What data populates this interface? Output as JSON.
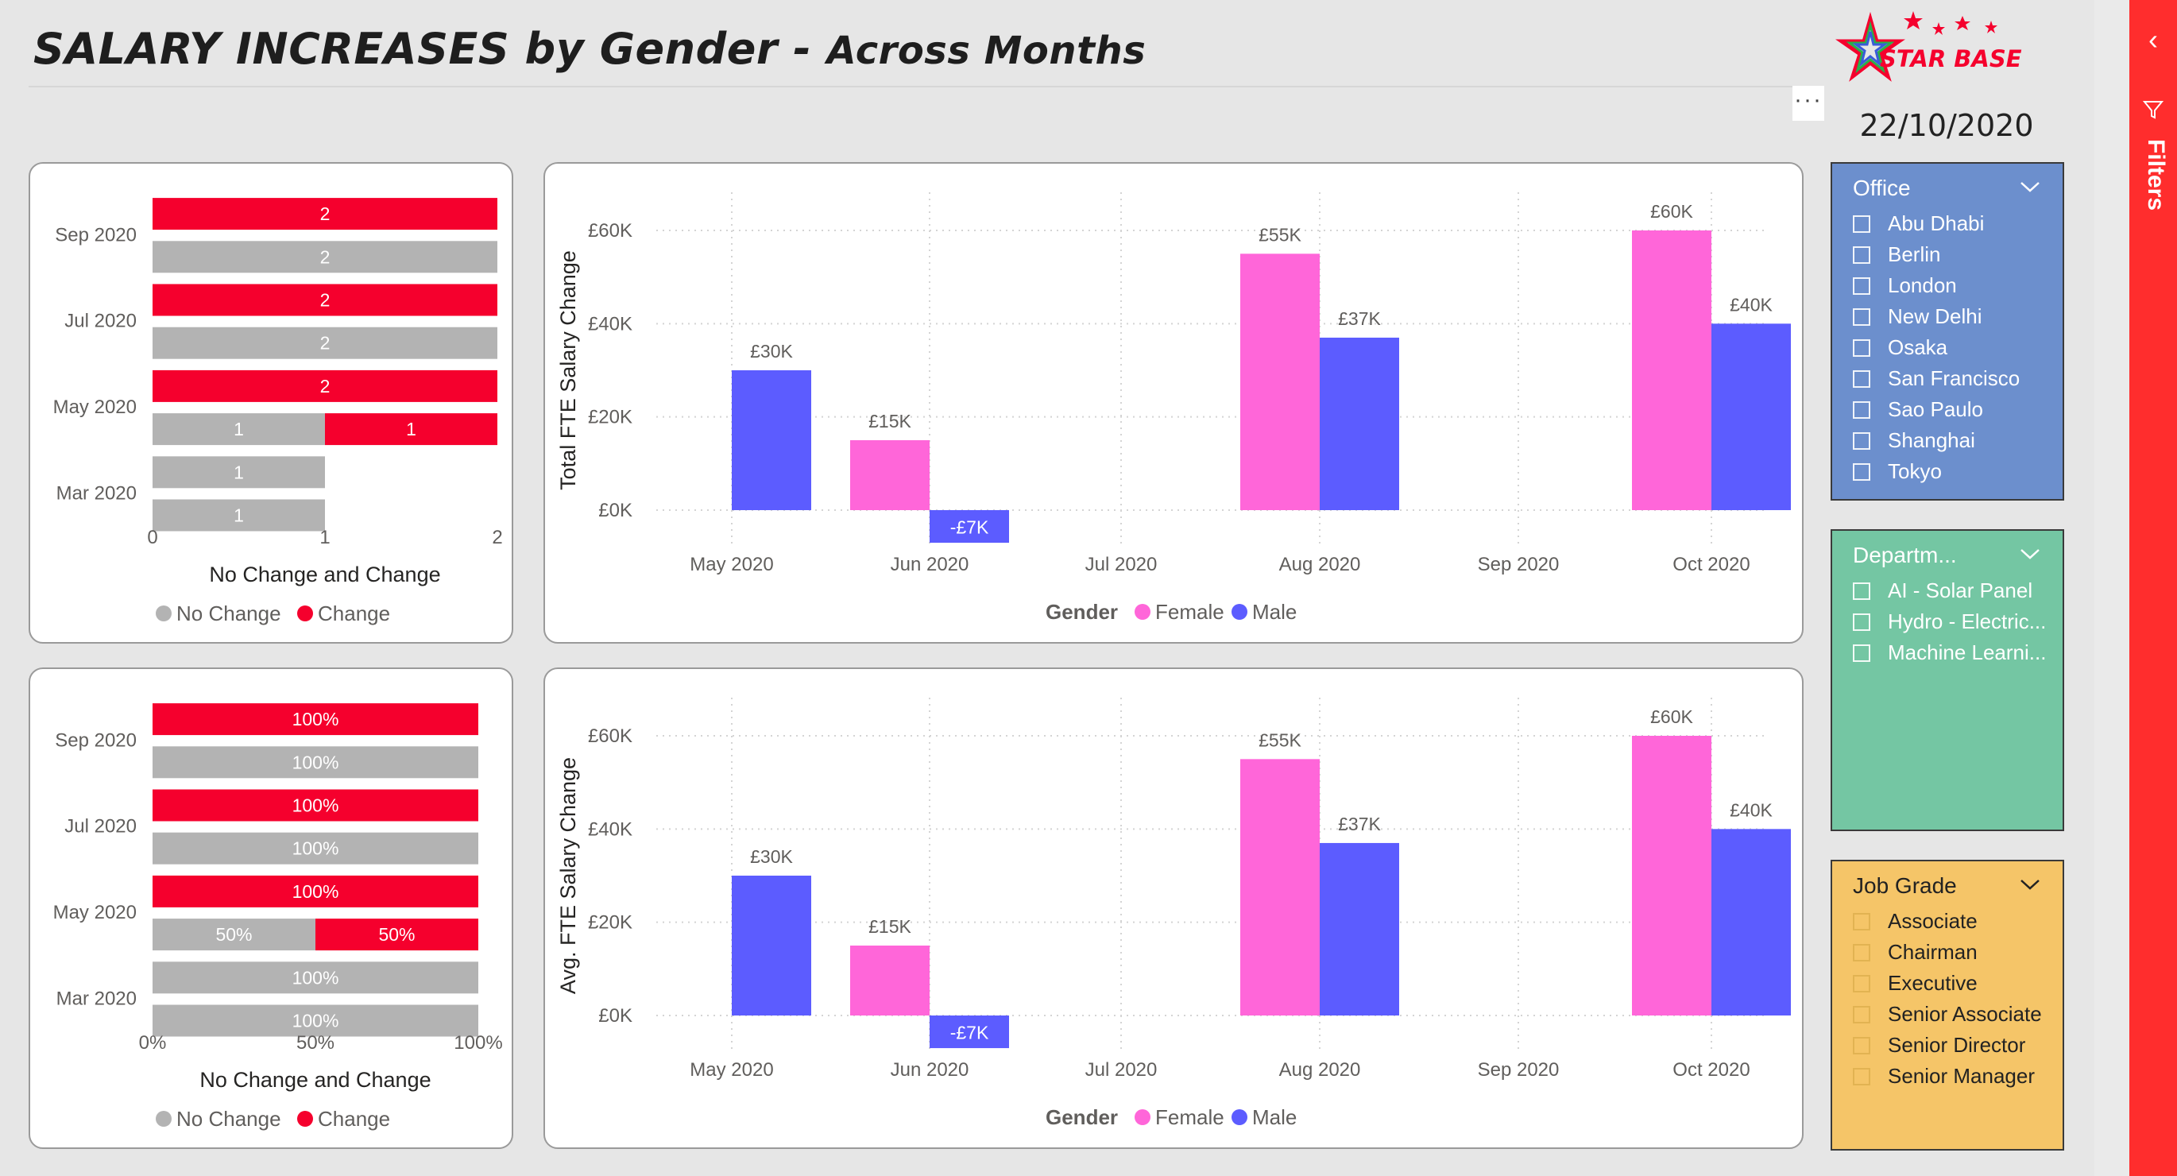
{
  "title": {
    "main": "SALARY INCREASES by Gender - ",
    "sub": "Across Months"
  },
  "logo": {
    "text": "STAR BASE"
  },
  "date": "22/10/2020",
  "more_label": "···",
  "filters_label": "Filters",
  "colors": {
    "female": "#ff66d9",
    "male": "#5c5cff",
    "no_change": "#b3b3b3",
    "change": "#f5002d",
    "office_bg": "#6c8fcd",
    "dept_bg": "#74c6a3",
    "grade_bg": "#f5c568",
    "filters_strip": "#ff2d2d"
  },
  "slicers": {
    "office": {
      "title": "Office",
      "items": [
        "Abu Dhabi",
        "Berlin",
        "London",
        "New Delhi",
        "Osaka",
        "San Francisco",
        "Sao Paulo",
        "Shanghai",
        "Tokyo"
      ]
    },
    "department": {
      "title": "Departm...",
      "items": [
        "AI - Solar Panel",
        "Hydro - Electric...",
        "Machine Learni..."
      ]
    },
    "job_grade": {
      "title": "Job Grade",
      "items": [
        "Associate",
        "Chairman",
        "Executive",
        "Senior Associate",
        "Senior Director",
        "Senior Manager"
      ]
    }
  },
  "chart_data": [
    {
      "id": "count-chart",
      "type": "bar",
      "orientation": "horizontal",
      "stacked": true,
      "title": "",
      "rows": [
        {
          "label": "",
          "no_change": 0,
          "change": 2,
          "labels": [
            "2"
          ]
        },
        {
          "label": "Sep 2020",
          "no_change": 2,
          "change": 0,
          "labels": [
            "2"
          ]
        },
        {
          "label": "",
          "no_change": 0,
          "change": 2,
          "labels": [
            "2"
          ]
        },
        {
          "label": "Jul 2020",
          "no_change": 2,
          "change": 0,
          "labels": [
            "2"
          ]
        },
        {
          "label": "",
          "no_change": 0,
          "change": 2,
          "labels": [
            "2"
          ]
        },
        {
          "label": "May 2020",
          "no_change": 1,
          "change": 1,
          "labels": [
            "1",
            "1"
          ]
        },
        {
          "label": "",
          "no_change": 1,
          "change": 0,
          "labels": [
            "1"
          ]
        },
        {
          "label": "Mar 2020",
          "no_change": 1,
          "change": 0,
          "labels": [
            "1"
          ]
        }
      ],
      "xticks": [
        "0",
        "1",
        "2"
      ],
      "xlim": [
        0,
        2
      ],
      "xlabel": "No Change and Change",
      "legend": [
        "No Change",
        "Change"
      ],
      "legend_position": "bottom"
    },
    {
      "id": "pct-chart",
      "type": "bar",
      "orientation": "horizontal",
      "stacked": true,
      "percent": true,
      "title": "",
      "rows": [
        {
          "label": "",
          "no_change": 0,
          "change": 100,
          "labels": [
            "100%"
          ]
        },
        {
          "label": "Sep 2020",
          "no_change": 100,
          "change": 0,
          "labels": [
            "100%"
          ]
        },
        {
          "label": "",
          "no_change": 0,
          "change": 100,
          "labels": [
            "100%"
          ]
        },
        {
          "label": "Jul 2020",
          "no_change": 100,
          "change": 0,
          "labels": [
            "100%"
          ]
        },
        {
          "label": "",
          "no_change": 0,
          "change": 100,
          "labels": [
            "100%"
          ]
        },
        {
          "label": "May 2020",
          "no_change": 50,
          "change": 50,
          "labels": [
            "50%",
            "50%"
          ]
        },
        {
          "label": "",
          "no_change": 100,
          "change": 0,
          "labels": [
            "100%"
          ]
        },
        {
          "label": "Mar 2020",
          "no_change": 100,
          "change": 0,
          "labels": [
            "100%"
          ]
        }
      ],
      "xticks": [
        "0%",
        "50%",
        "100%"
      ],
      "xlim": [
        0,
        100
      ],
      "xlabel": "No Change and Change",
      "legend": [
        "No Change",
        "Change"
      ],
      "legend_position": "bottom"
    },
    {
      "id": "total-chart",
      "type": "bar",
      "orientation": "vertical",
      "title": "",
      "categories": [
        "May 2020",
        "Jun 2020",
        "Jul 2020",
        "Aug 2020",
        "Sep 2020",
        "Oct 2020"
      ],
      "series": [
        {
          "name": "Female",
          "values": [
            null,
            15,
            null,
            55,
            null,
            60
          ],
          "labels": [
            "",
            "£15K",
            "",
            "£55K",
            "",
            "£60K"
          ]
        },
        {
          "name": "Male",
          "values": [
            30,
            -7,
            null,
            37,
            null,
            40
          ],
          "labels": [
            "£30K",
            "-£7K",
            "",
            "£37K",
            "",
            "£40K"
          ]
        }
      ],
      "unit": "£K",
      "yticks": [
        "£0K",
        "£20K",
        "£40K",
        "£60K"
      ],
      "ylim": [
        -7,
        65
      ],
      "ylabel": "Total FTE Salary Change",
      "legend_title": "Gender",
      "legend_position": "bottom",
      "grid": true
    },
    {
      "id": "avg-chart",
      "type": "bar",
      "orientation": "vertical",
      "title": "",
      "categories": [
        "May 2020",
        "Jun 2020",
        "Jul 2020",
        "Aug 2020",
        "Sep 2020",
        "Oct 2020"
      ],
      "series": [
        {
          "name": "Female",
          "values": [
            null,
            15,
            null,
            55,
            null,
            60
          ],
          "labels": [
            "",
            "£15K",
            "",
            "£55K",
            "",
            "£60K"
          ]
        },
        {
          "name": "Male",
          "values": [
            30,
            -7,
            null,
            37,
            null,
            40
          ],
          "labels": [
            "£30K",
            "-£7K",
            "",
            "£37K",
            "",
            "£40K"
          ]
        }
      ],
      "unit": "£K",
      "yticks": [
        "£0K",
        "£20K",
        "£40K",
        "£60K"
      ],
      "ylim": [
        -7,
        65
      ],
      "ylabel": "Avg. FTE Salary Change",
      "legend_title": "Gender",
      "legend_position": "bottom",
      "grid": true
    }
  ]
}
